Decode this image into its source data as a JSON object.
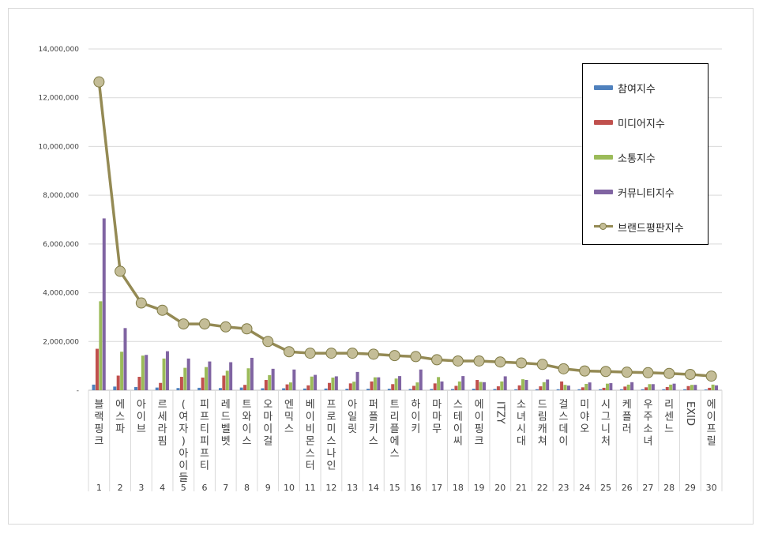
{
  "chart_data": {
    "type": "bar",
    "title": "",
    "xlabel": "",
    "ylabel": "",
    "ylim": [
      0,
      14000000
    ],
    "yticks": [
      "-",
      "2,000,000",
      "4,000,000",
      "6,000,000",
      "8,000,000",
      "10,000,000",
      "12,000,000",
      "14,000,000"
    ],
    "grid": true,
    "legend_position": "top-right",
    "categories": [
      "블랙핑크",
      "에스파",
      "아이브",
      "르세라핌",
      "(여자)아이들",
      "피프티피프티",
      "레드벨벳",
      "트와이스",
      "오마이걸",
      "엔믹스",
      "베이비몬스터",
      "프로미스나인",
      "아일릿",
      "퍼플키스",
      "트리플에스",
      "하이키",
      "마마무",
      "스테이씨",
      "에이핑크",
      "ITZY",
      "소녀시대",
      "드림캐쳐",
      "걸스데이",
      "미야오",
      "시그니처",
      "케플러",
      "우주소녀",
      "리센느",
      "EXID",
      "에이프릴"
    ],
    "ranks": [
      "1",
      "2",
      "3",
      "4",
      "5",
      "6",
      "7",
      "8",
      "9",
      "10",
      "11",
      "12",
      "13",
      "14",
      "15",
      "16",
      "17",
      "18",
      "19",
      "20",
      "21",
      "22",
      "23",
      "24",
      "25",
      "26",
      "27",
      "28",
      "29",
      "30"
    ],
    "series": [
      {
        "name": "참여지수",
        "kind": "bar",
        "color": "#4f81bd",
        "values": [
          230000,
          150000,
          130000,
          110000,
          90000,
          100000,
          90000,
          110000,
          80000,
          80000,
          70000,
          70000,
          60000,
          60000,
          60000,
          50000,
          50000,
          50000,
          60000,
          50000,
          40000,
          40000,
          40000,
          40000,
          40000,
          40000,
          40000,
          40000,
          40000,
          30000
        ]
      },
      {
        "name": "미디어지수",
        "kind": "bar",
        "color": "#c0504d",
        "values": [
          1700000,
          600000,
          550000,
          300000,
          550000,
          520000,
          600000,
          220000,
          420000,
          240000,
          200000,
          300000,
          280000,
          360000,
          250000,
          180000,
          280000,
          180000,
          420000,
          160000,
          200000,
          160000,
          360000,
          120000,
          100000,
          150000,
          120000,
          130000,
          170000,
          100000
        ]
      },
      {
        "name": "소통지수",
        "kind": "bar",
        "color": "#9bbb59",
        "values": [
          3650000,
          1580000,
          1420000,
          1300000,
          920000,
          950000,
          800000,
          900000,
          620000,
          320000,
          560000,
          520000,
          350000,
          530000,
          480000,
          320000,
          540000,
          360000,
          340000,
          360000,
          450000,
          330000,
          220000,
          260000,
          270000,
          230000,
          250000,
          230000,
          220000,
          230000
        ]
      },
      {
        "name": "커뮤니티지수",
        "kind": "bar",
        "color": "#8064a2",
        "values": [
          7050000,
          2550000,
          1450000,
          1600000,
          1300000,
          1180000,
          1150000,
          1330000,
          880000,
          850000,
          630000,
          570000,
          750000,
          530000,
          580000,
          850000,
          360000,
          580000,
          330000,
          570000,
          420000,
          440000,
          190000,
          320000,
          290000,
          330000,
          250000,
          270000,
          220000,
          200000
        ]
      },
      {
        "name": "브랜드평판지수",
        "kind": "line",
        "color": "#948a54",
        "marker_color": "#c4bd97",
        "values": [
          12650000,
          4880000,
          3580000,
          3280000,
          2720000,
          2720000,
          2600000,
          2520000,
          2000000,
          1580000,
          1520000,
          1520000,
          1520000,
          1480000,
          1420000,
          1380000,
          1250000,
          1200000,
          1200000,
          1160000,
          1120000,
          1060000,
          880000,
          790000,
          770000,
          740000,
          720000,
          690000,
          650000,
          580000
        ]
      }
    ]
  }
}
